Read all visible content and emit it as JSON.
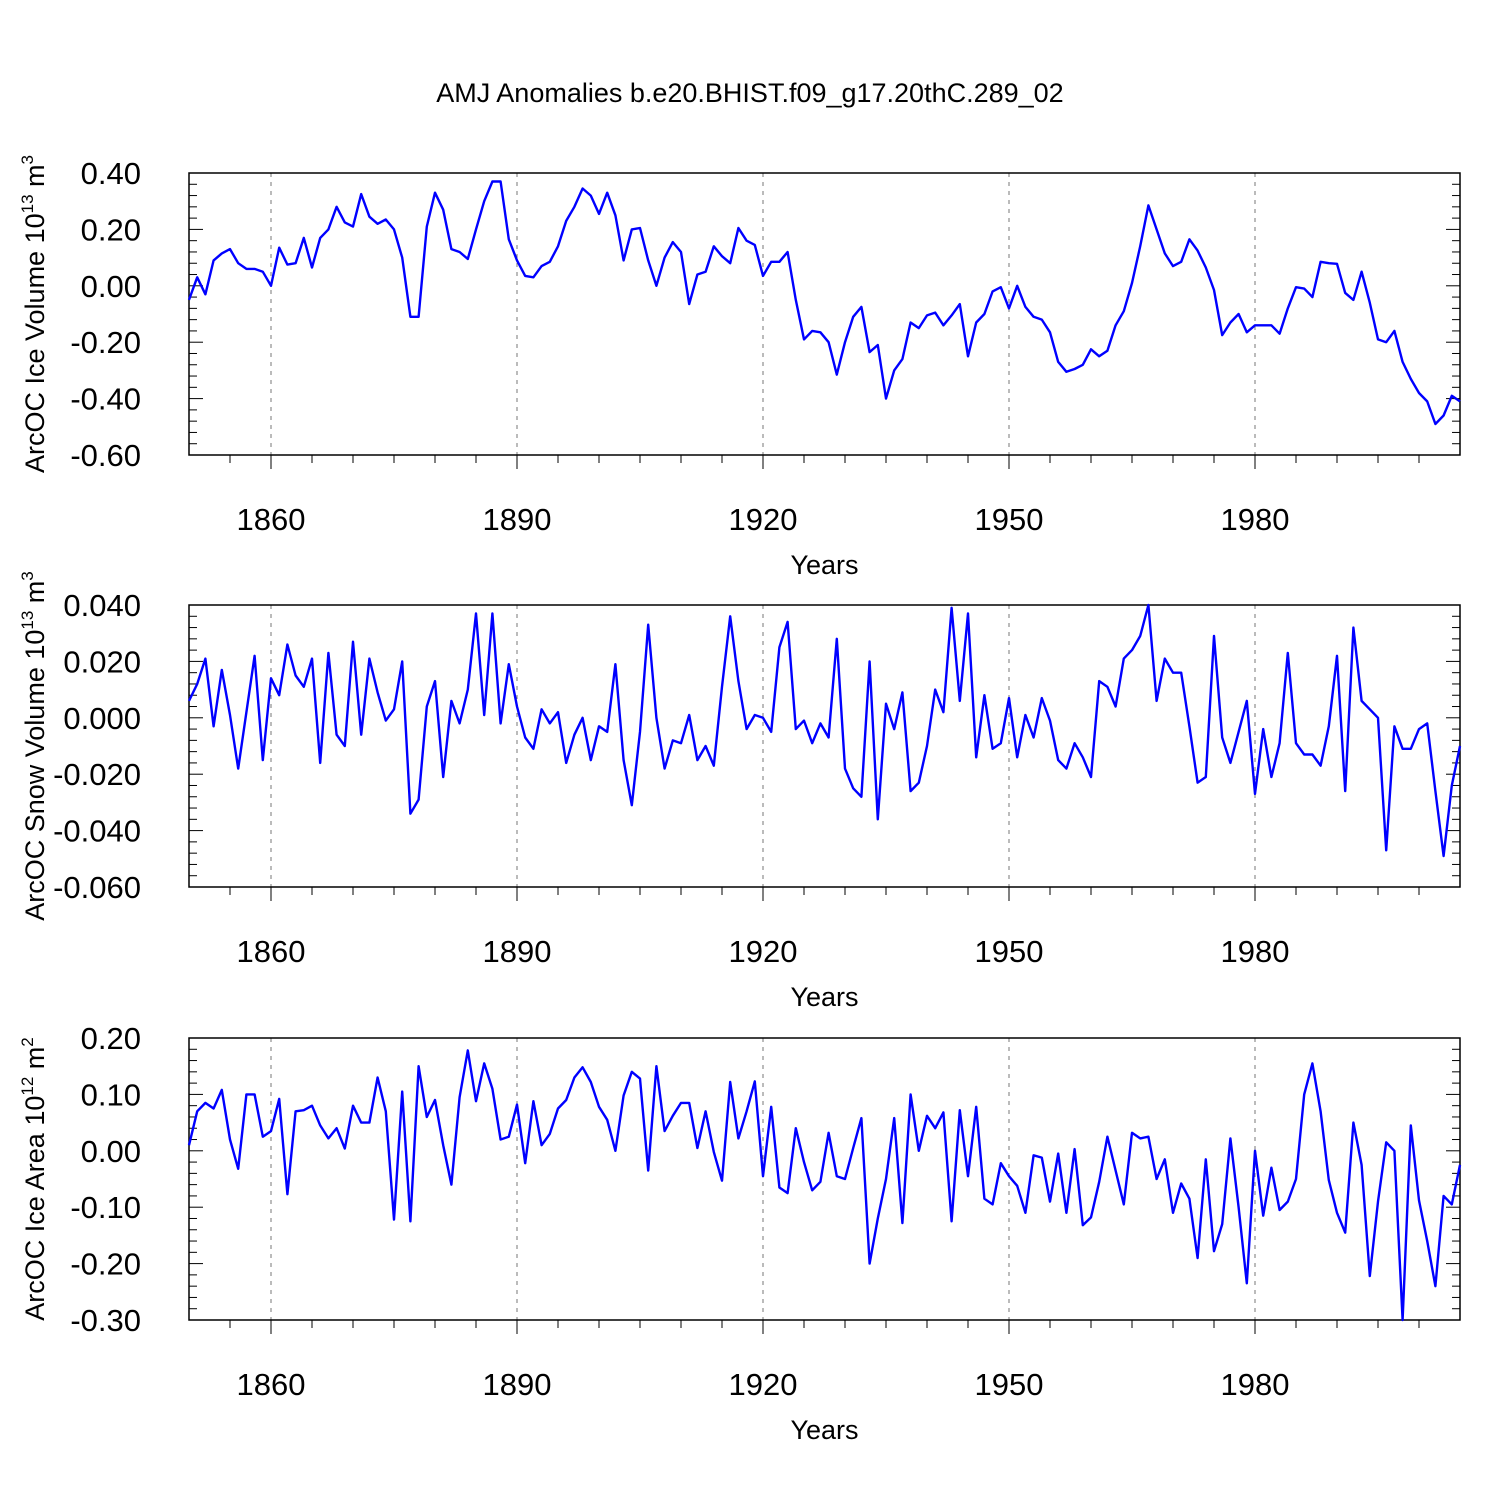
{
  "title": "AMJ Anomalies b.e20.BHIST.f09_g17.20thC.289_02",
  "colors": {
    "line": "#0000ff",
    "axis": "#000000",
    "grid": "#777777"
  },
  "chart_data": [
    {
      "type": "line",
      "title": "",
      "xlabel": "Years",
      "ylabel_parts": [
        "ArcOC Ice Volume 10",
        "13",
        " m",
        "3"
      ],
      "xlim": [
        1850,
        2005
      ],
      "ylim": [
        -0.6,
        0.4
      ],
      "x_ticks": [
        1860,
        1890,
        1920,
        1950,
        1980
      ],
      "y_ticks": [
        "-0.60",
        "-0.40",
        "-0.20",
        "0.00",
        "0.20",
        "0.40"
      ],
      "grid": "x-dashed",
      "series": [
        {
          "name": "ArcOC Ice Volume",
          "x_start": 1850,
          "x_step": 1,
          "values": [
            -0.05,
            0.03,
            -0.03,
            0.09,
            0.115,
            0.13,
            0.08,
            0.06,
            0.06,
            0.05,
            0.0,
            0.135,
            0.075,
            0.08,
            0.17,
            0.065,
            0.17,
            0.2,
            0.28,
            0.225,
            0.21,
            0.325,
            0.245,
            0.22,
            0.235,
            0.2,
            0.1,
            -0.11,
            -0.11,
            0.21,
            0.33,
            0.27,
            0.13,
            0.12,
            0.095,
            0.2,
            0.3,
            0.37,
            0.37,
            0.165,
            0.09,
            0.035,
            0.03,
            0.07,
            0.085,
            0.14,
            0.23,
            0.28,
            0.345,
            0.32,
            0.255,
            0.33,
            0.25,
            0.09,
            0.2,
            0.205,
            0.09,
            0.0,
            0.1,
            0.155,
            0.12,
            -0.065,
            0.04,
            0.05,
            0.14,
            0.105,
            0.08,
            0.205,
            0.16,
            0.145,
            0.035,
            0.085,
            0.085,
            0.12,
            -0.05,
            -0.19,
            -0.16,
            -0.165,
            -0.2,
            -0.315,
            -0.2,
            -0.11,
            -0.075,
            -0.235,
            -0.21,
            -0.4,
            -0.3,
            -0.26,
            -0.13,
            -0.15,
            -0.105,
            -0.095,
            -0.14,
            -0.105,
            -0.065,
            -0.25,
            -0.13,
            -0.1,
            -0.02,
            -0.005,
            -0.08,
            0.0,
            -0.075,
            -0.11,
            -0.12,
            -0.165,
            -0.27,
            -0.305,
            -0.295,
            -0.28,
            -0.225,
            -0.25,
            -0.23,
            -0.14,
            -0.09,
            0.01,
            0.14,
            0.285,
            0.2,
            0.115,
            0.07,
            0.085,
            0.165,
            0.125,
            0.065,
            -0.015,
            -0.175,
            -0.13,
            -0.1,
            -0.165,
            -0.14,
            -0.14,
            -0.14,
            -0.17,
            -0.08,
            -0.005,
            -0.01,
            -0.04,
            0.085,
            0.08,
            0.078,
            -0.025,
            -0.05,
            0.05,
            -0.06,
            -0.19,
            -0.2,
            -0.16,
            -0.27,
            -0.33,
            -0.38,
            -0.41,
            -0.49,
            -0.46,
            -0.39,
            -0.41
          ]
        }
      ]
    },
    {
      "type": "line",
      "title": "",
      "xlabel": "Years",
      "ylabel_parts": [
        "ArcOC Snow Volume 10",
        "13",
        " m",
        "3"
      ],
      "xlim": [
        1850,
        2005
      ],
      "ylim": [
        -0.06,
        0.04
      ],
      "x_ticks": [
        1860,
        1890,
        1920,
        1950,
        1980
      ],
      "y_ticks": [
        "-0.060",
        "-0.040",
        "-0.020",
        "0.000",
        "0.020",
        "0.040"
      ],
      "grid": "x-dashed",
      "series": [
        {
          "name": "ArcOC Snow Volume",
          "x_start": 1850,
          "x_step": 1,
          "values": [
            0.006,
            0.012,
            0.021,
            -0.003,
            0.017,
            0.001,
            -0.018,
            0.002,
            0.022,
            -0.015,
            0.014,
            0.008,
            0.026,
            0.015,
            0.011,
            0.021,
            -0.016,
            0.023,
            -0.006,
            -0.01,
            0.027,
            -0.006,
            0.021,
            0.009,
            -0.001,
            0.003,
            0.02,
            -0.034,
            -0.029,
            0.004,
            0.013,
            -0.021,
            0.006,
            -0.002,
            0.01,
            0.037,
            0.001,
            0.037,
            -0.002,
            0.019,
            0.004,
            -0.007,
            -0.011,
            0.003,
            -0.002,
            0.002,
            -0.016,
            -0.006,
            0.0,
            -0.015,
            -0.003,
            -0.005,
            0.019,
            -0.015,
            -0.031,
            -0.005,
            0.033,
            0.0,
            -0.018,
            -0.008,
            -0.009,
            0.001,
            -0.015,
            -0.01,
            -0.017,
            0.011,
            0.036,
            0.013,
            -0.004,
            0.001,
            0.0,
            -0.005,
            0.025,
            0.034,
            -0.004,
            -0.001,
            -0.009,
            -0.002,
            -0.007,
            0.028,
            -0.018,
            -0.025,
            -0.028,
            0.02,
            -0.036,
            0.005,
            -0.004,
            0.009,
            -0.026,
            -0.023,
            -0.01,
            0.01,
            0.002,
            0.039,
            0.006,
            0.037,
            -0.014,
            0.008,
            -0.011,
            -0.009,
            0.007,
            -0.014,
            0.001,
            -0.007,
            0.007,
            -0.001,
            -0.015,
            -0.018,
            -0.009,
            -0.014,
            -0.021,
            0.013,
            0.011,
            0.004,
            0.021,
            0.024,
            0.029,
            0.04,
            0.006,
            0.021,
            0.016,
            0.016,
            -0.003,
            -0.023,
            -0.021,
            0.029,
            -0.007,
            -0.016,
            -0.005,
            0.006,
            -0.027,
            -0.004,
            -0.021,
            -0.009,
            0.023,
            -0.009,
            -0.013,
            -0.013,
            -0.017,
            -0.003,
            0.022,
            -0.026,
            0.032,
            0.006,
            0.003,
            0.0,
            -0.047,
            -0.003,
            -0.011,
            -0.011,
            -0.004,
            -0.002,
            -0.026,
            -0.049,
            -0.024,
            -0.01
          ]
        }
      ]
    },
    {
      "type": "line",
      "title": "",
      "xlabel": "Years",
      "ylabel_parts": [
        "ArcOC Ice Area 10",
        "12",
        " m",
        "2"
      ],
      "xlim": [
        1850,
        2005
      ],
      "ylim": [
        -0.3,
        0.2
      ],
      "x_ticks": [
        1860,
        1890,
        1920,
        1950,
        1980
      ],
      "y_ticks": [
        "-0.30",
        "-0.20",
        "-0.10",
        "0.00",
        "0.10",
        "0.20"
      ],
      "grid": "x-dashed",
      "series": [
        {
          "name": "ArcOC Ice Area",
          "x_start": 1850,
          "x_step": 1,
          "values": [
            0.01,
            0.07,
            0.085,
            0.075,
            0.108,
            0.02,
            -0.032,
            0.1,
            0.1,
            0.025,
            0.035,
            0.092,
            -0.077,
            0.07,
            0.072,
            0.08,
            0.045,
            0.022,
            0.04,
            0.004,
            0.08,
            0.05,
            0.05,
            0.13,
            0.07,
            -0.122,
            0.105,
            -0.125,
            0.15,
            0.06,
            0.09,
            0.01,
            -0.06,
            0.095,
            0.178,
            0.088,
            0.155,
            0.11,
            0.02,
            0.025,
            0.082,
            -0.022,
            0.088,
            0.01,
            0.03,
            0.075,
            0.09,
            0.13,
            0.148,
            0.122,
            0.078,
            0.055,
            0.0,
            0.098,
            0.14,
            0.128,
            -0.035,
            0.15,
            0.035,
            0.062,
            0.085,
            0.085,
            0.005,
            0.07,
            -0.002,
            -0.053,
            0.122,
            0.022,
            0.07,
            0.123,
            -0.045,
            0.078,
            -0.065,
            -0.075,
            0.04,
            -0.02,
            -0.07,
            -0.055,
            0.032,
            -0.045,
            -0.05,
            0.005,
            0.058,
            -0.2,
            -0.12,
            -0.05,
            0.058,
            -0.128,
            0.1,
            0.0,
            0.062,
            0.04,
            0.068,
            -0.125,
            0.072,
            -0.045,
            0.078,
            -0.085,
            -0.095,
            -0.022,
            -0.045,
            -0.062,
            -0.11,
            -0.008,
            -0.012,
            -0.09,
            -0.005,
            -0.11,
            0.003,
            -0.132,
            -0.118,
            -0.055,
            0.025,
            -0.035,
            -0.095,
            0.032,
            0.022,
            0.025,
            -0.05,
            -0.015,
            -0.11,
            -0.058,
            -0.085,
            -0.19,
            -0.015,
            -0.178,
            -0.13,
            0.022,
            -0.1,
            -0.235,
            0.0,
            -0.115,
            -0.03,
            -0.105,
            -0.09,
            -0.05,
            0.1,
            0.155,
            0.07,
            -0.052,
            -0.11,
            -0.145,
            0.05,
            -0.025,
            -0.222,
            -0.09,
            0.015,
            0.0,
            -0.3,
            0.045,
            -0.088,
            -0.16,
            -0.24,
            -0.08,
            -0.095,
            -0.025
          ]
        }
      ]
    }
  ]
}
